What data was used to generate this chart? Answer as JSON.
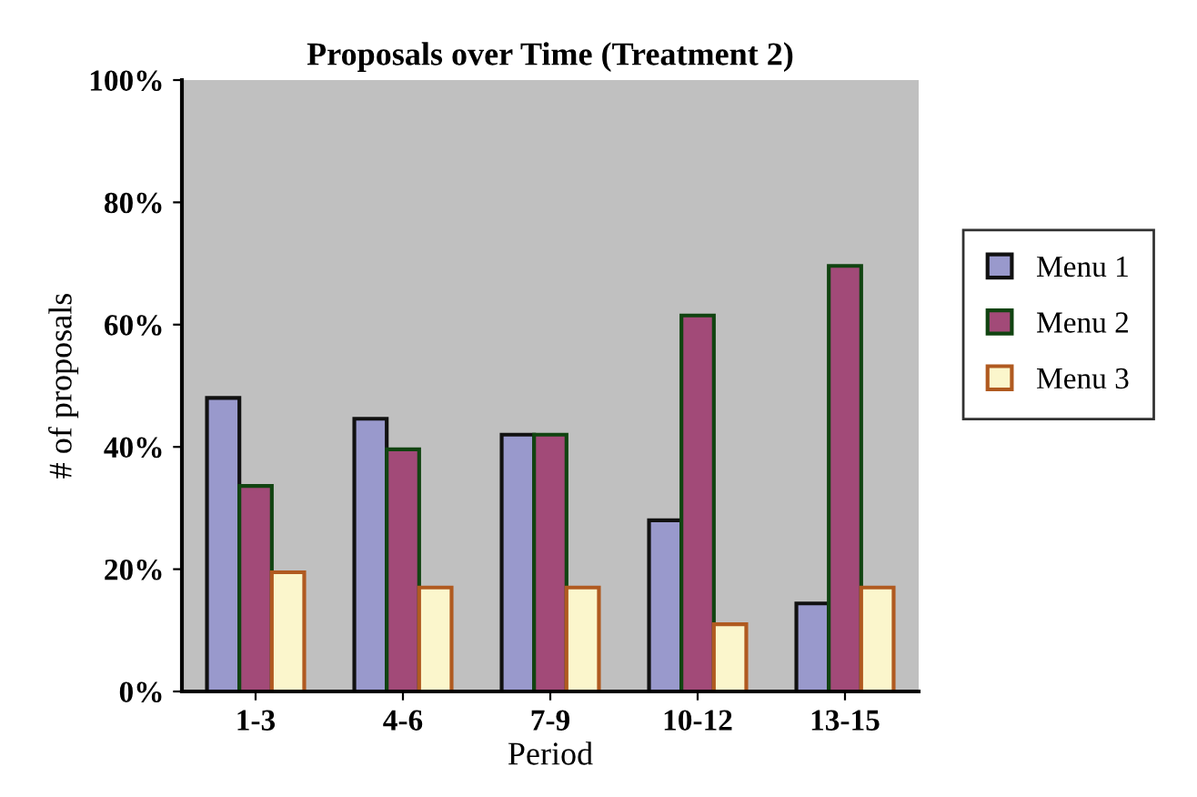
{
  "chart_data": {
    "type": "bar",
    "title": "Proposals over Time (Treatment 2)",
    "xlabel": "Period",
    "ylabel": "# of proposals",
    "categories": [
      "1-3",
      "4-6",
      "7-9",
      "10-12",
      "13-15"
    ],
    "series": [
      {
        "name": "Menu 1",
        "color": "#9999cc",
        "values": [
          48,
          44.6,
          42,
          28,
          14.4
        ]
      },
      {
        "name": "Menu 2",
        "color": "#a24a78",
        "values": [
          33.6,
          39.6,
          42,
          61.5,
          69.6
        ]
      },
      {
        "name": "Menu 3",
        "color": "#fbf6cc",
        "values": [
          19.5,
          17,
          17,
          11,
          17
        ]
      }
    ],
    "ylim": [
      0,
      100
    ],
    "yticks": [
      {
        "value": 0,
        "label": "0%"
      },
      {
        "value": 20,
        "label": "20%"
      },
      {
        "value": 40,
        "label": "40%"
      },
      {
        "value": 60,
        "label": "60%"
      },
      {
        "value": 80,
        "label": "80%"
      },
      {
        "value": 100,
        "label": "100%"
      }
    ],
    "grid": false,
    "legend": "right"
  }
}
